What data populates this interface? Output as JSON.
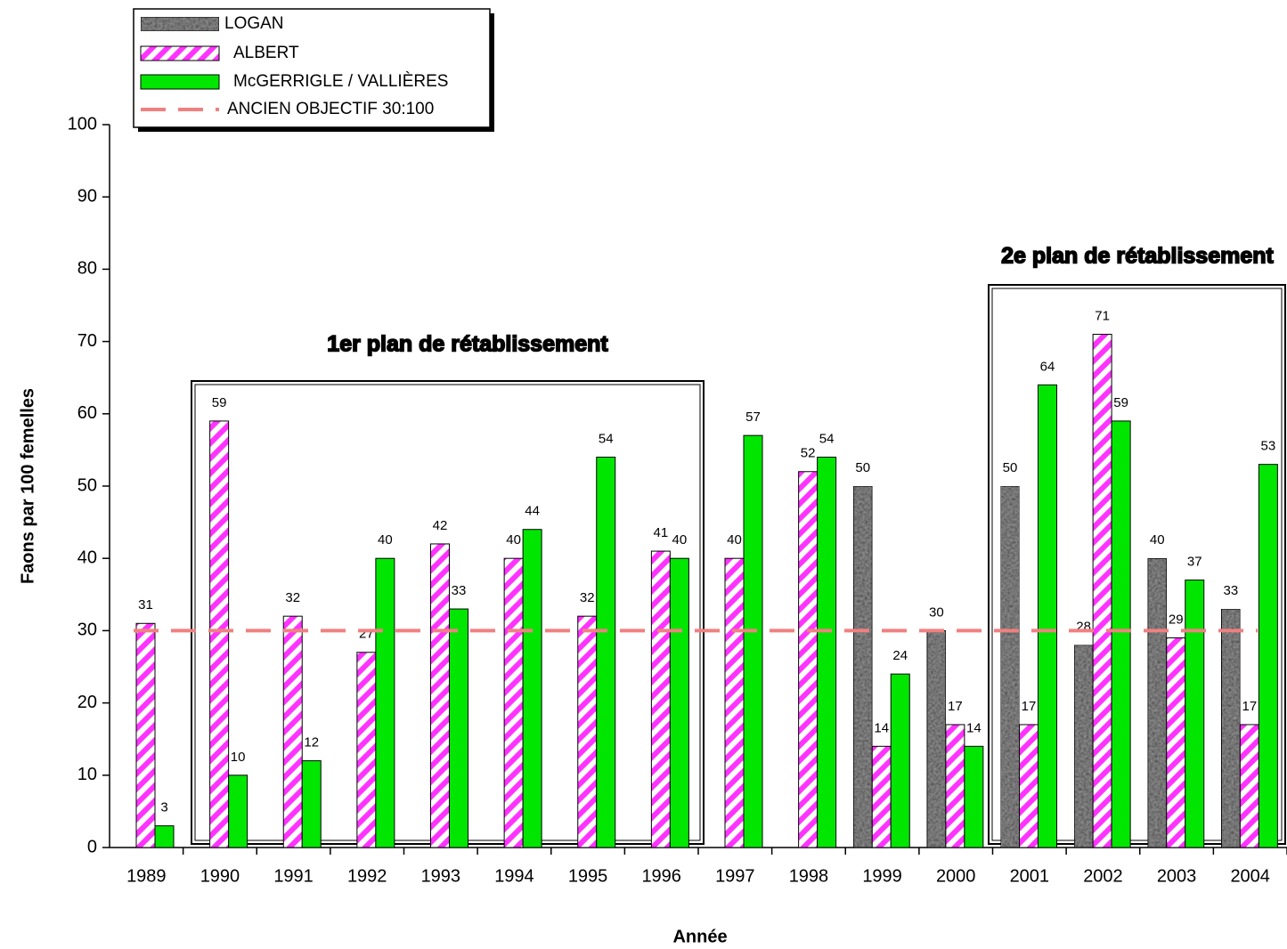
{
  "chart_data": {
    "type": "bar",
    "categories": [
      "1989",
      "1990",
      "1991",
      "1992",
      "1993",
      "1994",
      "1995",
      "1996",
      "1997",
      "1998",
      "1999",
      "2000",
      "2001",
      "2002",
      "2003",
      "2004"
    ],
    "series": [
      {
        "name": "LOGAN",
        "color": "#a0a0a0",
        "values": [
          null,
          null,
          null,
          null,
          null,
          null,
          null,
          null,
          null,
          null,
          50,
          30,
          50,
          28,
          40,
          33
        ]
      },
      {
        "name": "ALBERT",
        "color": "#ff33ff",
        "values": [
          31,
          59,
          32,
          27,
          42,
          40,
          32,
          41,
          40,
          52,
          14,
          17,
          17,
          71,
          29,
          17
        ]
      },
      {
        "name": "McGERRIGLE / VALLIÈRES",
        "color": "#00e600",
        "values": [
          3,
          10,
          12,
          40,
          33,
          44,
          54,
          40,
          57,
          54,
          24,
          14,
          64,
          59,
          37,
          53
        ]
      }
    ],
    "reference_line": {
      "name": "ANCIEN OBJECTIF 30:100",
      "value": 30,
      "color": "#f08080"
    },
    "annotations": [
      "1er plan de rétablissement",
      "2e plan de rétablissement"
    ],
    "xlabel": "Année",
    "ylabel": "Faons par 100 femelles",
    "ylim": [
      0,
      100
    ],
    "yticks": [
      0,
      10,
      20,
      30,
      40,
      50,
      60,
      70,
      80,
      90,
      100
    ],
    "grid": false
  }
}
